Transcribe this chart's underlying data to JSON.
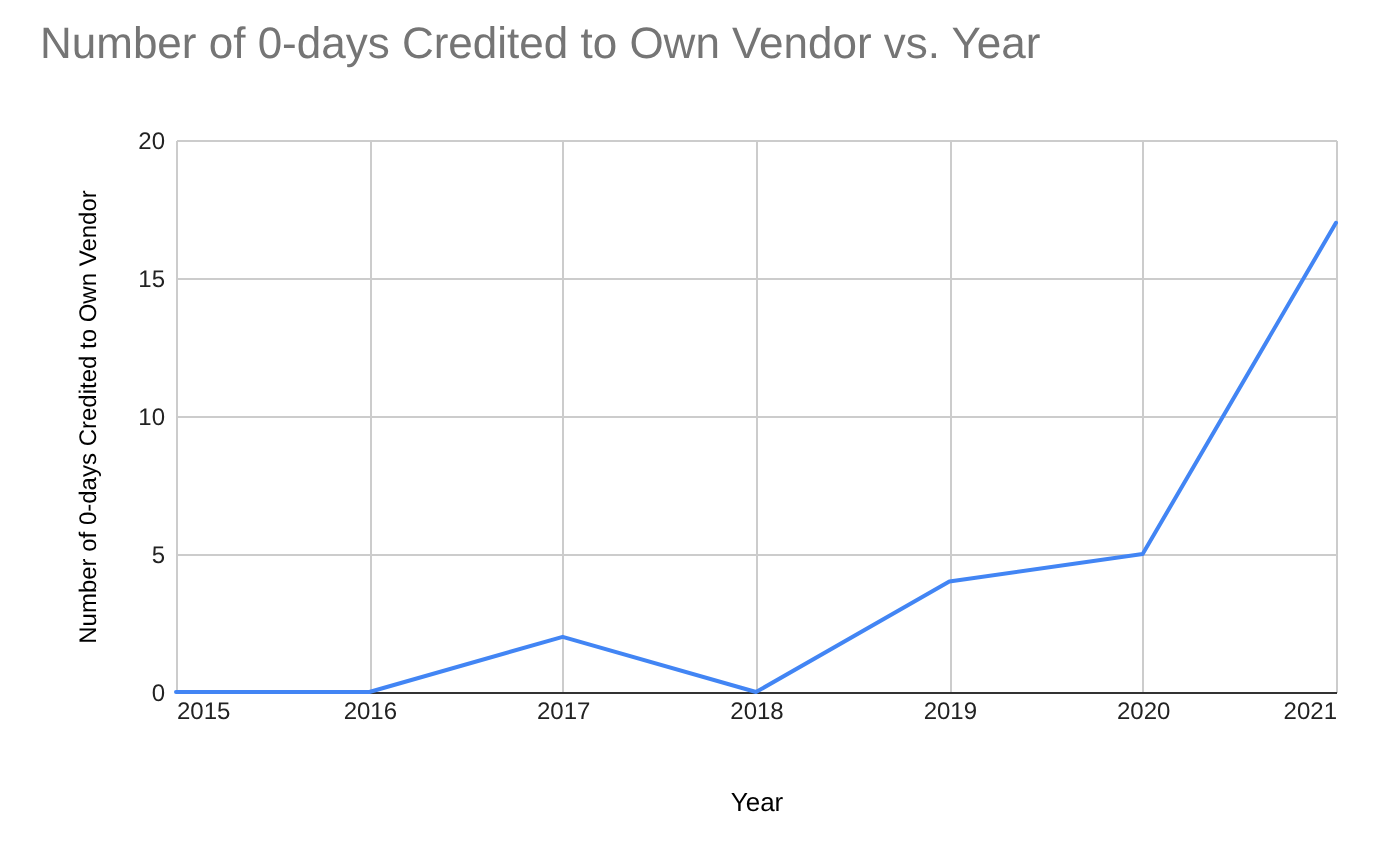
{
  "chart_data": {
    "type": "line",
    "title": "Number of 0-days Credited to Own Vendor vs. Year",
    "xlabel": "Year",
    "ylabel": "Number of 0-days Credited to Own Vendor",
    "x": [
      2015,
      2016,
      2017,
      2018,
      2019,
      2020,
      2021
    ],
    "series": [
      {
        "color": "#4285f4",
        "values": [
          0,
          0,
          2,
          0,
          4,
          5,
          17
        ]
      }
    ],
    "xlim": [
      2015,
      2021
    ],
    "xticks": [
      2015,
      2016,
      2017,
      2018,
      2019,
      2020,
      2021
    ],
    "ylim": [
      0,
      20
    ],
    "yticks": [
      0,
      5,
      10,
      15,
      20
    ],
    "grid": true,
    "marker": "none",
    "line_style": "solid"
  }
}
